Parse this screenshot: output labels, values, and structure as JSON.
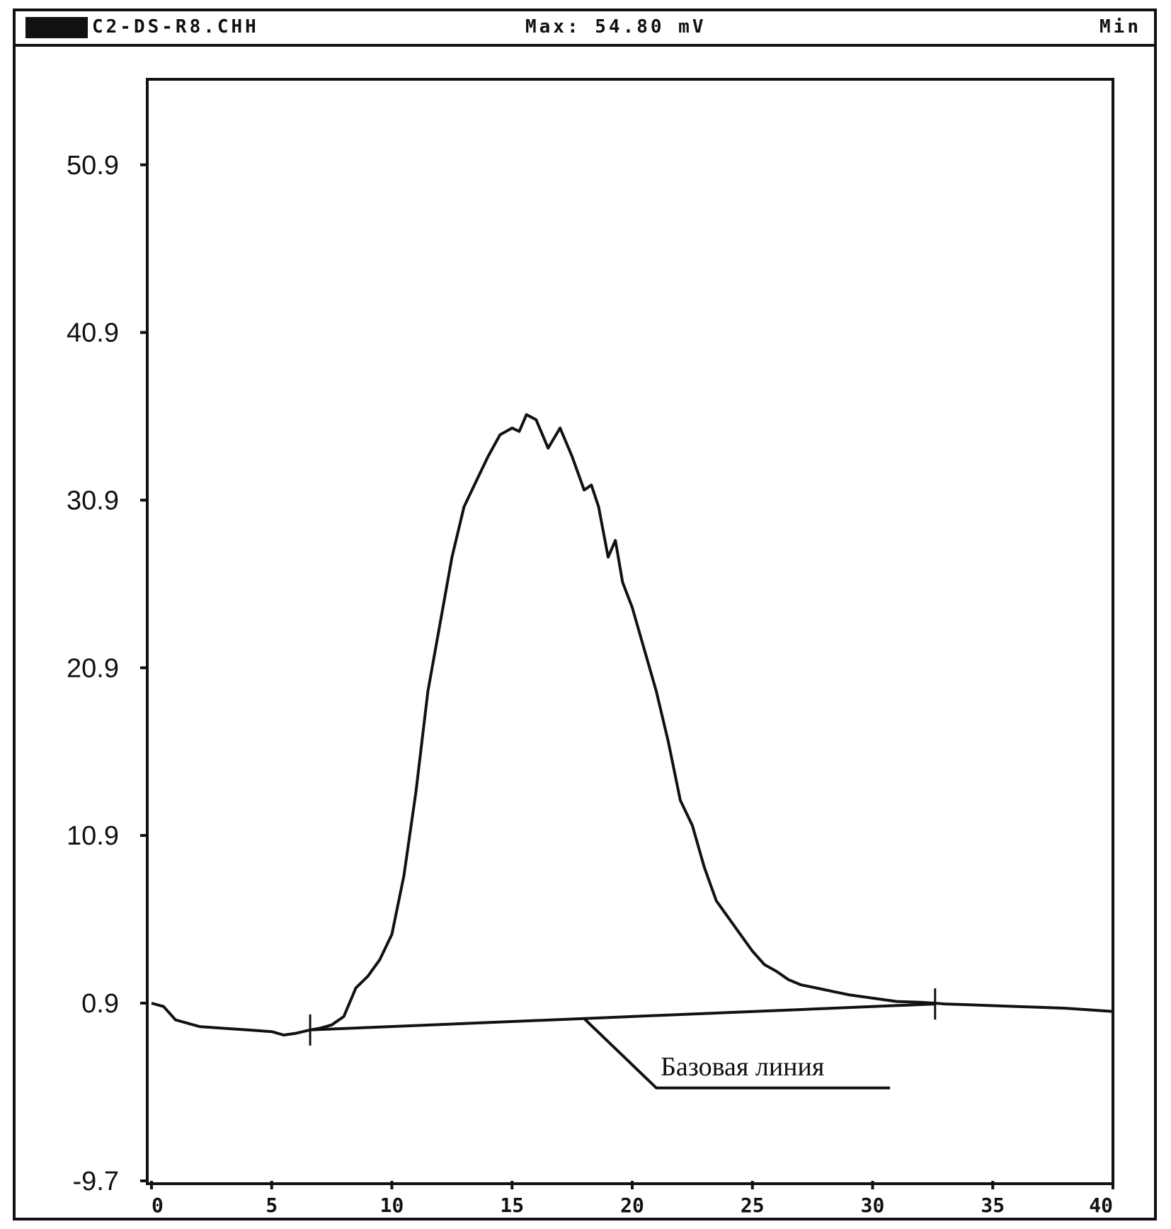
{
  "titlebar": {
    "file_name": "C2-DS-R8.CHH",
    "max_readout": "Max: 54.80  mV",
    "units": "Min"
  },
  "chart_data": {
    "type": "line",
    "title": "",
    "xlabel": "",
    "ylabel": "",
    "xlim": [
      0,
      40
    ],
    "ylim": [
      -9.7,
      56.0
    ],
    "y_ticks": [
      50.9,
      40.9,
      30.9,
      20.9,
      10.9,
      0.9,
      -9.7
    ],
    "y_tick_labels": [
      "50.9",
      "40.9",
      "30.9",
      "20.9",
      "10.9",
      "0.9",
      "-9.7"
    ],
    "x_ticks": [
      0,
      5,
      10,
      15,
      20,
      25,
      30,
      35,
      40
    ],
    "x_tick_labels": [
      "0",
      "5",
      "10",
      "15",
      "20",
      "25",
      "30",
      "35",
      "40"
    ],
    "grid": false,
    "series": [
      {
        "x": [
          0,
          0.5,
          1,
          2,
          3,
          4,
          5,
          5.5,
          6,
          6.6,
          7,
          7.5,
          8,
          8.5,
          9,
          9.5,
          10,
          10.5,
          11,
          11.5,
          12,
          12.5,
          13,
          13.5,
          14,
          14.5,
          15,
          15.3,
          15.6,
          16,
          16.5,
          17,
          17.5,
          18,
          18.3,
          18.6,
          19,
          19.3,
          19.6,
          20,
          20.5,
          21,
          21.5,
          22,
          22.5,
          23,
          23.5,
          24,
          24.5,
          25,
          25.5,
          26,
          26.5,
          27,
          28,
          29,
          30,
          31,
          32,
          32.6,
          33,
          34,
          35,
          36,
          37,
          38,
          39,
          40
        ],
        "y": [
          0.9,
          0.7,
          -0.1,
          -0.5,
          -0.6,
          -0.7,
          -0.8,
          -1.0,
          -0.9,
          -0.7,
          -0.6,
          -0.4,
          0.1,
          1.8,
          2.5,
          3.5,
          5.0,
          8.5,
          13.5,
          19.5,
          23.5,
          27.5,
          30.5,
          32.0,
          33.5,
          34.8,
          35.2,
          35.0,
          36.0,
          35.7,
          34.0,
          35.2,
          33.5,
          31.5,
          31.8,
          30.5,
          27.5,
          28.5,
          26.0,
          24.5,
          22.0,
          19.5,
          16.5,
          13.0,
          11.5,
          9.0,
          7.0,
          6.0,
          5.0,
          4.0,
          3.2,
          2.8,
          2.3,
          2.0,
          1.7,
          1.4,
          1.2,
          1.0,
          0.95,
          0.9,
          0.85,
          0.8,
          0.75,
          0.7,
          0.65,
          0.6,
          0.5,
          0.4
        ]
      }
    ],
    "baseline": {
      "x": [
        6.6,
        32.6
      ],
      "y": [
        -0.7,
        0.85
      ],
      "markers": [
        6.6,
        32.6
      ]
    },
    "annotation": {
      "text": "Базовая линия",
      "points_at_x": 18
    }
  }
}
